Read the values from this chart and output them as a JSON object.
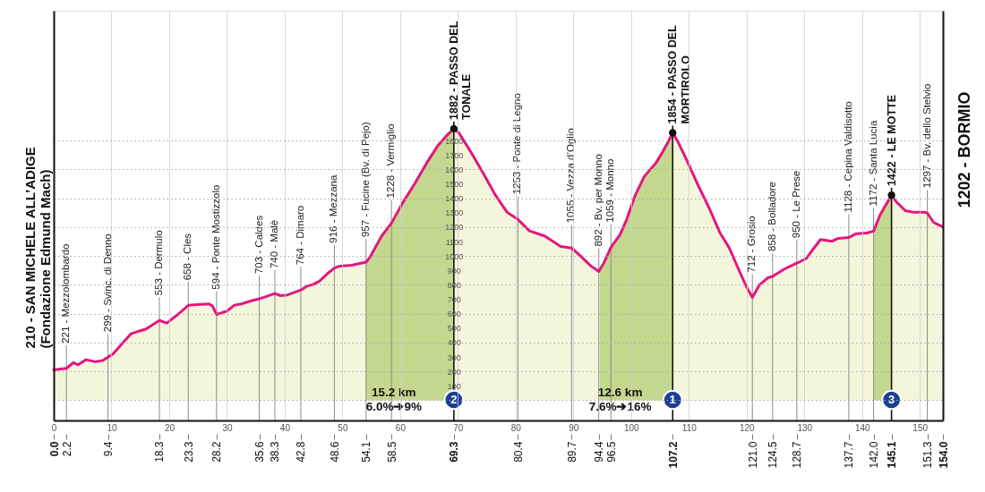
{
  "chart_data": {
    "type": "area",
    "x": [
      0,
      2.2,
      3.4,
      4.2,
      5.6,
      7.2,
      8.5,
      9.4,
      10.3,
      11.9,
      13.4,
      15.0,
      16.0,
      18.3,
      19.6,
      21.7,
      23.3,
      24.8,
      26.9,
      27.5,
      28.2,
      30.0,
      31.3,
      32.5,
      34.1,
      35.6,
      38.3,
      39.3,
      40.5,
      42.8,
      43.9,
      44.9,
      46.0,
      47.3,
      48.6,
      49.6,
      51.6,
      54.1,
      54.8,
      56.8,
      58.5,
      60.4,
      62.5,
      64.6,
      66.6,
      68.2,
      69.3,
      70.2,
      72.3,
      74.4,
      76.4,
      78.5,
      80.4,
      82.4,
      85.0,
      87.8,
      89.7,
      91.4,
      93.0,
      94.4,
      95.3,
      96.5,
      98.1,
      99.2,
      100.7,
      102.3,
      104.3,
      105.4,
      106.4,
      107.2,
      108.0,
      109.5,
      111.6,
      113.6,
      115.4,
      117.0,
      118.8,
      120.1,
      121.0,
      122.2,
      123.7,
      124.5,
      126.6,
      128.7,
      130.4,
      131.5,
      132.8,
      134.8,
      135.9,
      137.7,
      139.0,
      140.8,
      142.0,
      143.1,
      145.1,
      145.9,
      147.5,
      148.8,
      150.8,
      151.3,
      152.4,
      154.0
    ],
    "series": [
      {
        "color": "#f4f6dc",
        "values": [
          210,
          221,
          260,
          246,
          281,
          267,
          275,
          299,
          322,
          395,
          461,
          482,
          494,
          553,
          535,
          601,
          658,
          663,
          668,
          653,
          594,
          618,
          659,
          668,
          688,
          703,
          740,
          725,
          730,
          764,
          792,
          802,
          825,
          874,
          916,
          930,
          936,
          957,
          994,
          1139,
          1228,
          1366,
          1500,
          1645,
          1769,
          1841,
          1882,
          1852,
          1717,
          1573,
          1428,
          1304,
          1253,
          1174,
          1139,
          1066,
          1055,
          994,
          932,
          892,
          953,
          1059,
          1149,
          1250,
          1420,
          1552,
          1645,
          1717,
          1790,
          1854,
          1800,
          1676,
          1490,
          1325,
          1159,
          1056,
          891,
          777,
          712,
          798,
          849,
          858,
          911,
          950,
          984,
          1046,
          1114,
          1102,
          1122,
          1128,
          1155,
          1159,
          1172,
          1283,
          1422,
          1376,
          1314,
          1304,
          1304,
          1297,
          1232,
          1202
        ]
      },
      {
        "name": "15.2 km\n6.0%➔9%",
        "color": "#c3d88e",
        "x": [
          54.1,
          54.8,
          56.8,
          58.5,
          60.4,
          62.5,
          64.6,
          66.6,
          68.2,
          69.3
        ],
        "values": [
          957,
          994,
          1139,
          1228,
          1366,
          1500,
          1645,
          1769,
          1841,
          1882
        ]
      },
      {
        "name": "12.6 km\n7.6%➔16%",
        "color": "#c3d88e",
        "x": [
          94.6,
          95.3,
          96.5,
          98.1,
          99.2,
          100.7,
          102.3,
          104.3,
          105.4,
          106.4,
          107.2
        ],
        "values": [
          905,
          953,
          1059,
          1149,
          1250,
          1420,
          1552,
          1645,
          1717,
          1790,
          1854
        ]
      },
      {
        "color": "#c3d88e",
        "x": [
          142.0,
          143.1,
          145.1
        ],
        "values": [
          1172,
          1283,
          1422
        ]
      }
    ],
    "xlim": [
      0,
      154
    ],
    "xticks": [
      0,
      10,
      20,
      30,
      40,
      50,
      60,
      70,
      80,
      90,
      100,
      110,
      120,
      130,
      140,
      150
    ],
    "x2lim": [
      0,
      154
    ],
    "x2ticks": [
      {
        "value": 0,
        "label": "0.0"
      },
      2.2,
      9.4,
      18.3,
      23.3,
      28.2,
      35.6,
      38.3,
      42.8,
      48.6,
      54.1,
      58.5,
      69.3,
      80.4,
      89.7,
      94.4,
      96.5,
      107.2,
      {
        "value": 121,
        "label": "121.0"
      },
      124.5,
      128.7,
      137.7,
      {
        "value": 142,
        "label": "142.0"
      },
      145.1,
      151.3,
      {
        "value": 154,
        "label": "154.0"
      }
    ],
    "ylim": [
      -140,
      2700
    ],
    "yticks": [
      {
        "value": 0,
        "label": null
      },
      100,
      200,
      300,
      400,
      500,
      600,
      700,
      800,
      900,
      1000,
      1100,
      1200,
      1300,
      1400,
      1500,
      1600,
      1700,
      1800
    ],
    "grid": true,
    "annotations": [
      {
        "text": "210 - SAN MICHELE ALL’ADIGE\n(Fondazione Edmund Mach)",
        "x": 0,
        "y": 210
      },
      {
        "text": "221 - Mezzolombardo",
        "x": 2.2,
        "y": 221
      },
      {
        "text": "299 - Svinc. di Denno",
        "x": 9.4,
        "y": 299
      },
      {
        "text": "553 - Dermulo",
        "x": 18.3,
        "y": 553
      },
      {
        "text": "658 - Cles",
        "x": 23.3,
        "y": 658
      },
      {
        "text": "594 - Ponte Mostizzolo",
        "x": 28.2,
        "y": 594
      },
      {
        "text": "703 - Caldes",
        "x": 35.6,
        "y": 703
      },
      {
        "text": "740 - Malè",
        "x": 38.3,
        "y": 740
      },
      {
        "text": "764 - Dimaro",
        "x": 42.8,
        "y": 764
      },
      {
        "text": "916 - Mezzana",
        "x": 48.6,
        "y": 916
      },
      {
        "text": "957 - Fucine (Bv. di Pejo)",
        "x": 54.1,
        "y": 957
      },
      {
        "text": "1228 - Vermiglio",
        "x": 58.5,
        "y": 1228
      },
      {
        "text": "1882 - PASSO DEL\nTONALE",
        "x": 69.3,
        "y": 1882
      },
      {
        "text": "1253 - Ponte di Legno",
        "x": 80.4,
        "y": 1253
      },
      {
        "text": "1055 - Vezza d’Oglio",
        "x": 89.7,
        "y": 1055
      },
      {
        "text": "892 - Bv. per Monno",
        "x": 94.4,
        "y": 892
      },
      {
        "text": "1059 - Monno",
        "x": 96.5,
        "y": 1059
      },
      {
        "text": "1854 - PASSO DEL\nMORTIROLO",
        "x": 107.2,
        "y": 1854
      },
      {
        "text": "712 - Grosio",
        "x": 121.0,
        "y": 712
      },
      {
        "text": "858 - Bolladore",
        "x": 124.5,
        "y": 858
      },
      {
        "text": "950 - Le Prese",
        "x": 128.7,
        "y": 950
      },
      {
        "text": "1128 - Cepina Valdisotto",
        "x": 137.7,
        "y": 1128
      },
      {
        "text": "1172 - Santa Lucia",
        "x": 142.0,
        "y": 1172
      },
      {
        "text": "1422 - LE MOTTE",
        "x": 145.1,
        "y": 1422
      },
      {
        "text": "3",
        "x": 145.1,
        "y": 1422
      },
      {
        "text": "1297 - Bv. dello Stelvio",
        "x": 151.3,
        "y": 1297
      },
      {
        "text": "1202 - BORMIO",
        "x": 154,
        "y": 1202
      },
      "2",
      "1"
    ]
  }
}
